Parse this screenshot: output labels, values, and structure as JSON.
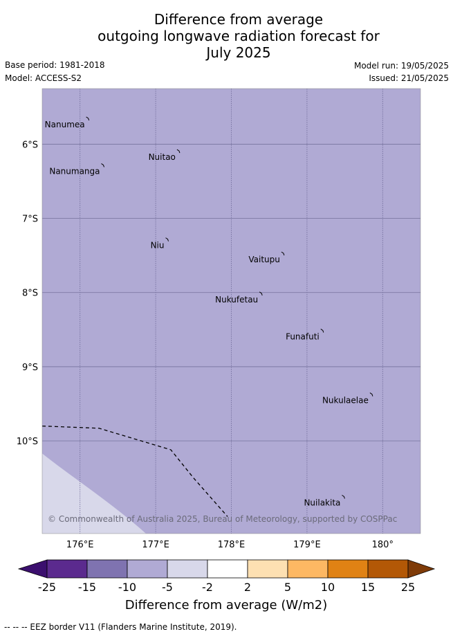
{
  "title": {
    "line1": "Difference from average",
    "line2": "outgoing longwave radiation forecast for",
    "line3": "July 2025"
  },
  "meta": {
    "base_period": "Base period: 1981-2018",
    "model": "Model: ACCESS-S2",
    "model_run": "Model run: 19/05/2025",
    "issued": "Issued: 21/05/2025"
  },
  "map": {
    "lon_range": [
      175.5,
      180.5
    ],
    "lat_range": [
      -5.25,
      -11.25
    ],
    "fill_color": "#b0aad4",
    "light_fill_color": "#d8d8ea",
    "lon_ticks": [
      {
        "value": 176,
        "label": "176°E"
      },
      {
        "value": 177,
        "label": "177°E"
      },
      {
        "value": 178,
        "label": "178°E"
      },
      {
        "value": 179,
        "label": "179°E"
      },
      {
        "value": 180,
        "label": "180°"
      }
    ],
    "lat_ticks": [
      {
        "value": -6,
        "label": "6°S"
      },
      {
        "value": -7,
        "label": "7°S"
      },
      {
        "value": -8,
        "label": "8°S"
      },
      {
        "value": -9,
        "label": "9°S"
      },
      {
        "value": -10,
        "label": "10°S"
      }
    ],
    "islands": [
      {
        "name": "Nanumea",
        "lon": 176.1,
        "lat": -5.66
      },
      {
        "name": "Nuitao",
        "lon": 177.3,
        "lat": -6.1
      },
      {
        "name": "Nanumanga",
        "lon": 176.3,
        "lat": -6.29
      },
      {
        "name": "Niu",
        "lon": 177.15,
        "lat": -7.29
      },
      {
        "name": "Vaitupu",
        "lon": 178.68,
        "lat": -7.48
      },
      {
        "name": "Nukufetau",
        "lon": 178.39,
        "lat": -8.02
      },
      {
        "name": "Funafuti",
        "lon": 179.2,
        "lat": -8.52
      },
      {
        "name": "Nukulaelae",
        "lon": 179.85,
        "lat": -9.38
      },
      {
        "name": "Nuilakita",
        "lon": 179.48,
        "lat": -10.76
      }
    ],
    "eez_border": [
      {
        "lon": 175.5,
        "lat": -9.8
      },
      {
        "lon": 176.25,
        "lat": -9.83
      },
      {
        "lon": 177.2,
        "lat": -10.12
      },
      {
        "lon": 177.5,
        "lat": -10.5
      },
      {
        "lon": 177.95,
        "lat": -11.02
      }
    ],
    "copyright": "© Commonwealth of Australia 2025, Bureau of Meteorology, supported by COSPPac"
  },
  "colorbar": {
    "label": "Difference from average (W/m2)",
    "ticks": [
      "-25",
      "-15",
      "-10",
      "-5",
      "-2",
      "2",
      "5",
      "10",
      "15",
      "25"
    ],
    "colors": [
      "#5b2a8e",
      "#7f73b0",
      "#b0aad4",
      "#d8d8ea",
      "#ffffff",
      "#fde0b2",
      "#fdb863",
      "#e08214",
      "#b35806"
    ],
    "under_color": "#3b0f6e",
    "over_color": "#7f3b08"
  },
  "footnote": "-- -- -- EEZ border V11 (Flanders Marine Institute, 2019)."
}
